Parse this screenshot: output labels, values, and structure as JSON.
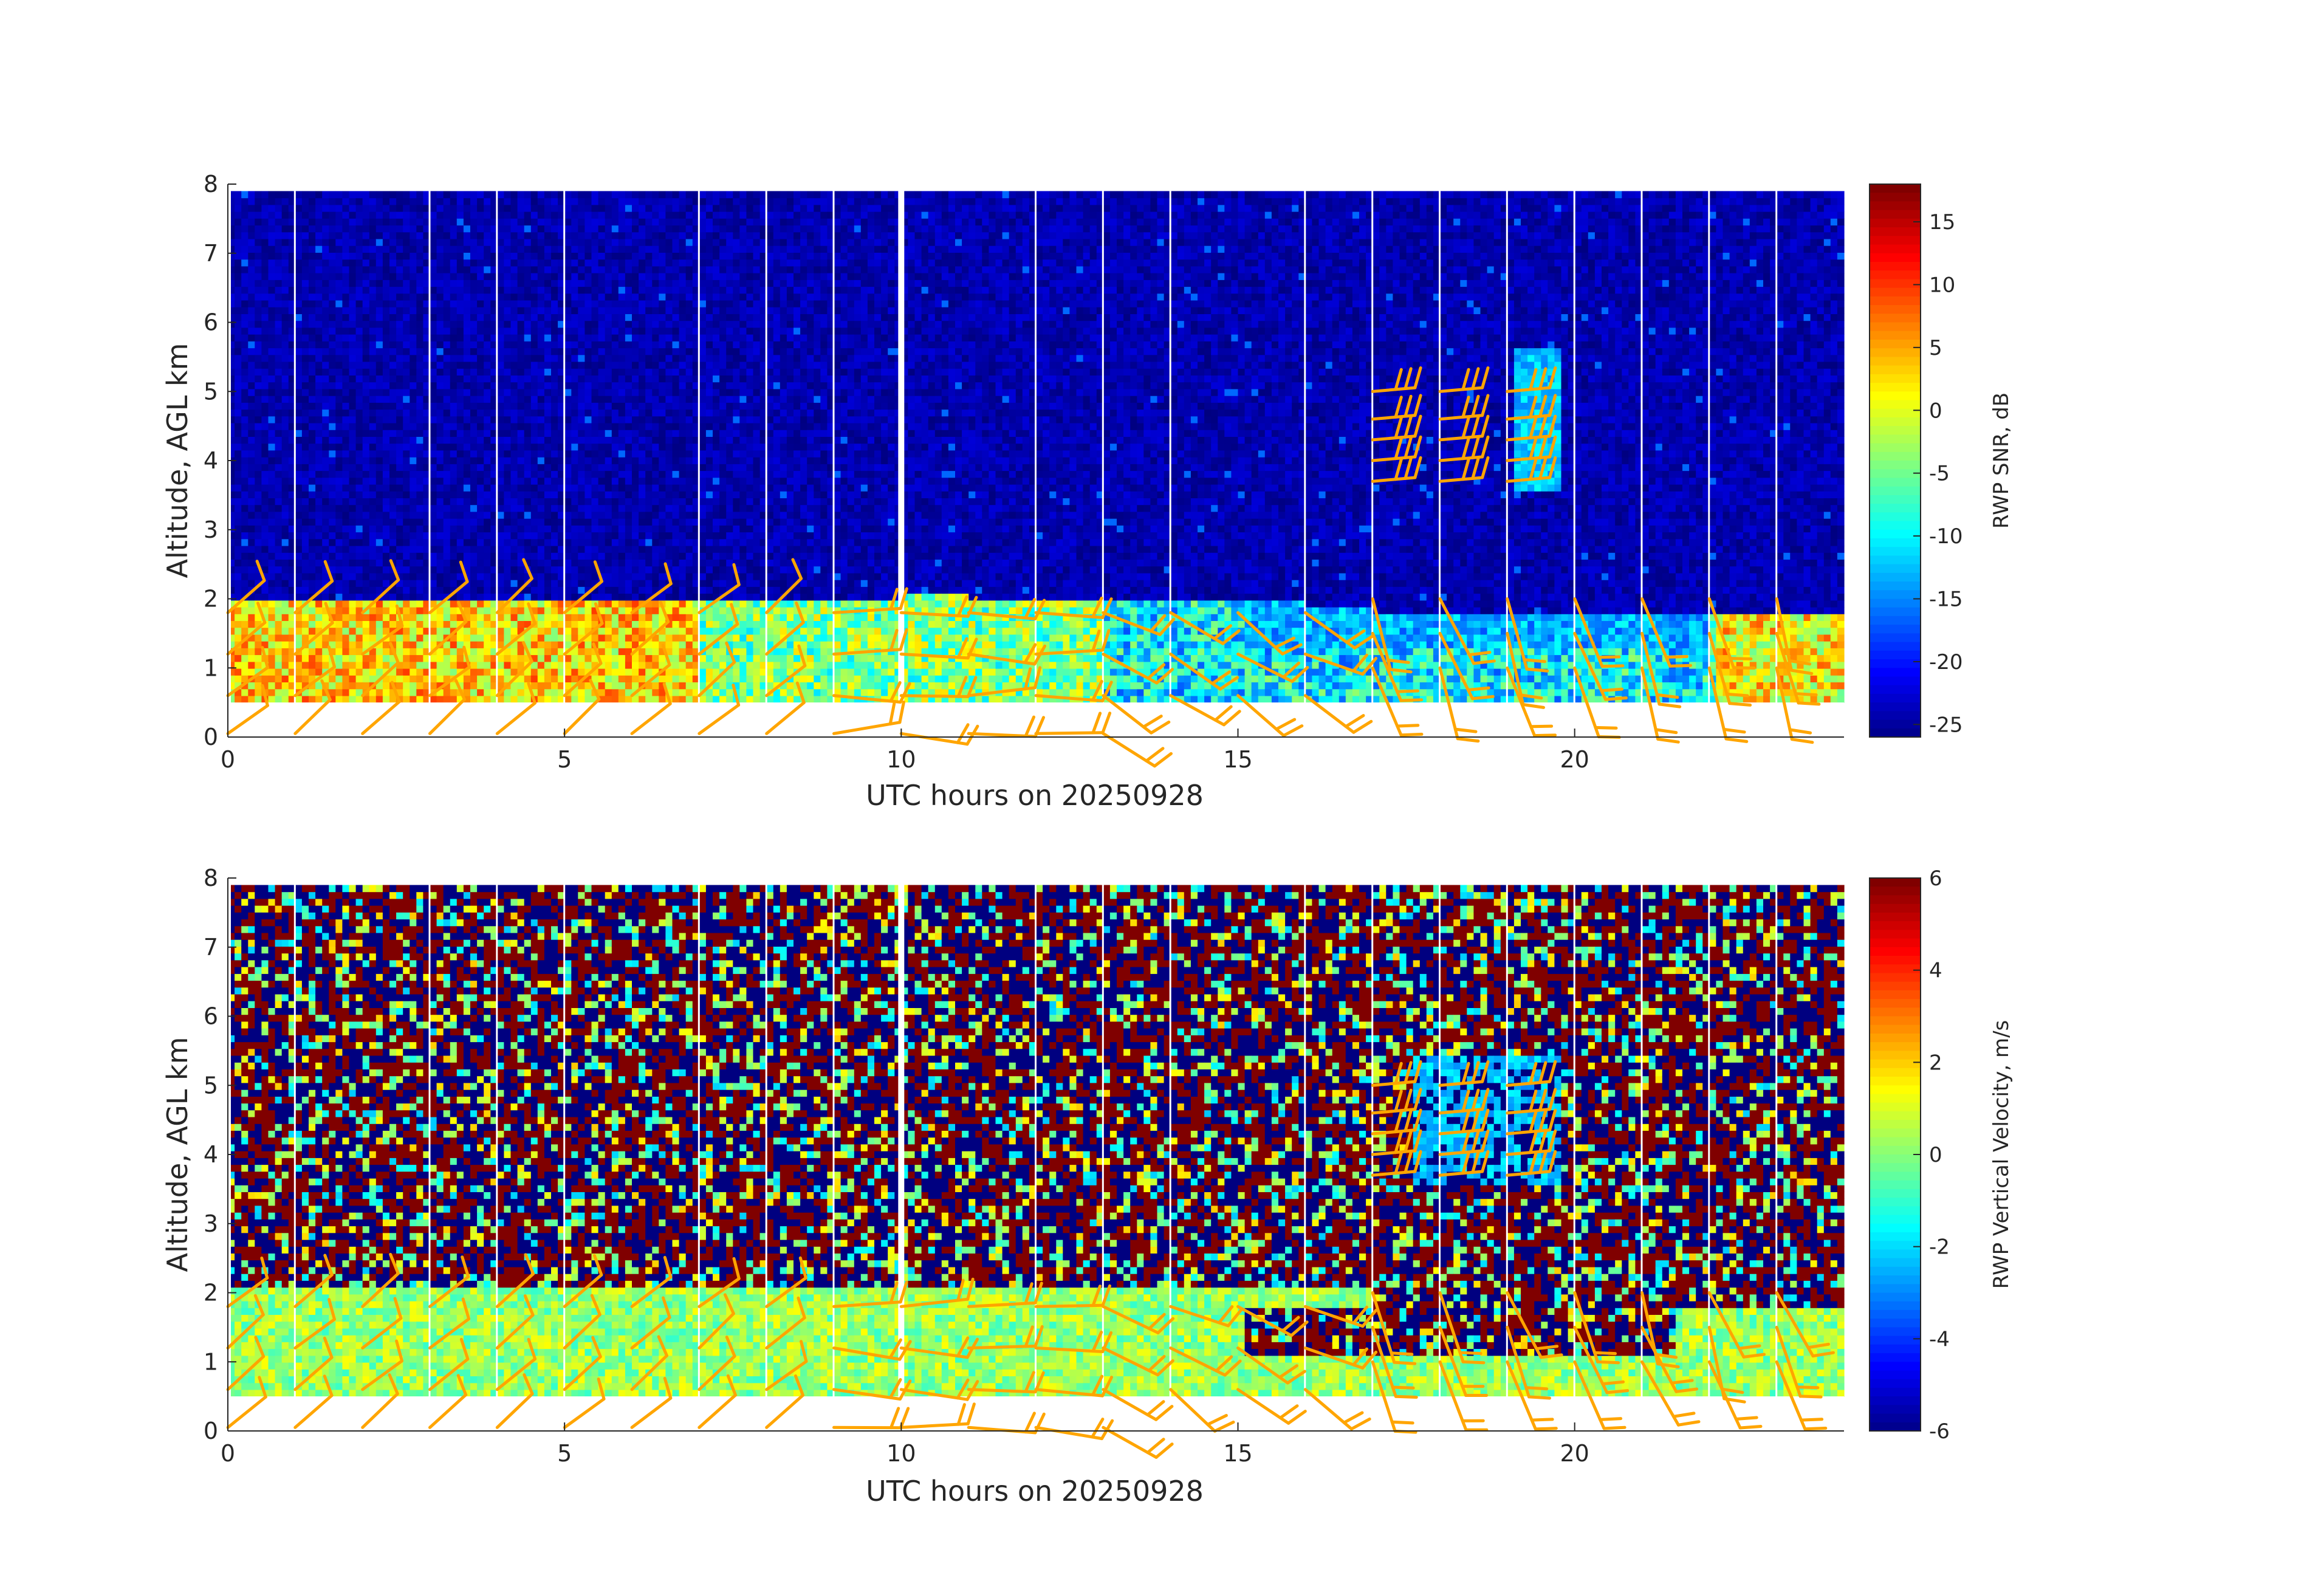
{
  "figure": {
    "title": "",
    "barb_color": "#FFA500",
    "gap_color": "#FFFFFF"
  },
  "chart_data": [
    {
      "type": "heatmap",
      "name": "snr-panel",
      "title": "",
      "xlabel": "UTC hours on 20250928",
      "ylabel": "Altitude, AGL km",
      "xlim": [
        0,
        24
      ],
      "ylim": [
        0,
        8
      ],
      "x_ticks": [
        0,
        5,
        10,
        15,
        20
      ],
      "y_ticks": [
        0,
        1,
        2,
        3,
        4,
        5,
        6,
        7,
        8
      ],
      "data_altitude_range_km": [
        0.5,
        7.9
      ],
      "colormap": "jet",
      "colorbar": {
        "label": "RWP SNR, dB",
        "range": [
          -26,
          18
        ],
        "ticks": [
          15,
          10,
          5,
          0,
          -5,
          -10,
          -15,
          -20,
          -25
        ]
      },
      "grid": false,
      "wind_barbs": true,
      "white_gaps_hours": [
        1,
        3,
        4,
        5,
        7,
        8,
        9,
        10,
        12,
        13,
        14,
        16,
        17,
        18,
        19,
        20,
        21,
        22,
        23
      ]
    },
    {
      "type": "heatmap",
      "name": "velocity-panel",
      "title": "",
      "xlabel": "UTC hours on 20250928",
      "ylabel": "Altitude, AGL km",
      "xlim": [
        0,
        24
      ],
      "ylim": [
        0,
        8
      ],
      "x_ticks": [
        0,
        5,
        10,
        15,
        20
      ],
      "y_ticks": [
        0,
        1,
        2,
        3,
        4,
        5,
        6,
        7,
        8
      ],
      "data_altitude_range_km": [
        0.5,
        7.9
      ],
      "colormap": "jet",
      "colorbar": {
        "label": "RWP Vertical Velocity, m/s",
        "range": [
          -6,
          6
        ],
        "ticks": [
          6,
          4,
          2,
          0,
          -2,
          -4,
          -6
        ]
      },
      "grid": false,
      "wind_barbs": true,
      "white_gaps_hours": [
        1,
        3,
        4,
        5,
        7,
        8,
        9,
        10,
        12,
        13,
        14,
        16,
        17,
        18,
        19,
        20,
        21,
        22,
        23
      ]
    }
  ]
}
